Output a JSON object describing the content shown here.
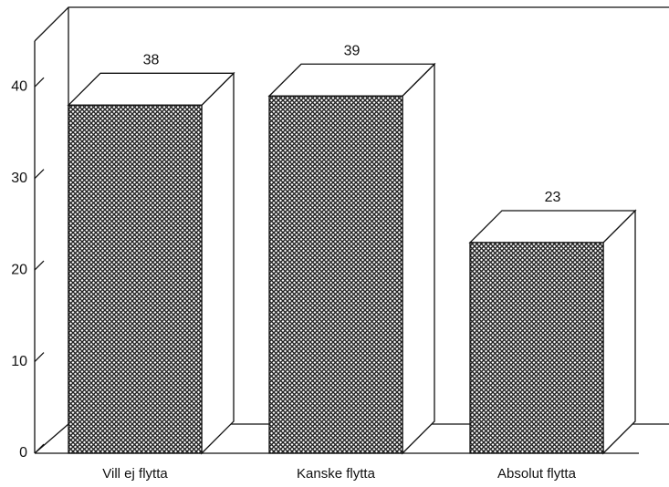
{
  "chart_data": {
    "type": "bar3d",
    "categories": [
      "Vill ej flytta",
      "Kanske flytta",
      "Absolut flytta"
    ],
    "values": [
      38,
      39,
      23
    ],
    "color": "#555555",
    "ylim": [
      0,
      45
    ],
    "yticks": [
      0,
      10,
      20,
      30,
      40
    ]
  }
}
